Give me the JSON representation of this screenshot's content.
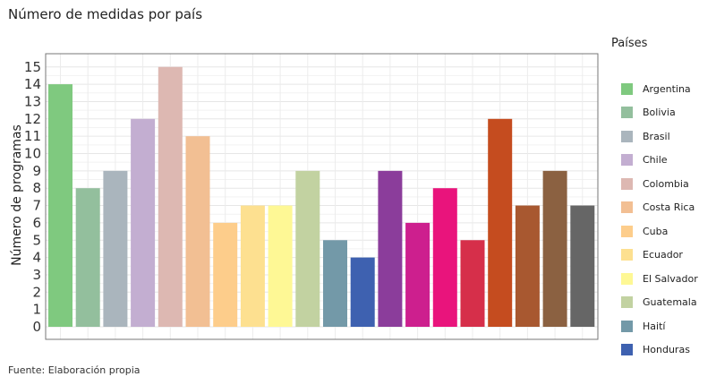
{
  "chart_data": {
    "type": "bar",
    "title": "Número de medidas por país",
    "xlabel": "",
    "ylabel": "Número de programas",
    "ylim": [
      0,
      15.5
    ],
    "yticks": [
      0,
      1,
      2,
      3,
      4,
      5,
      6,
      7,
      8,
      9,
      10,
      11,
      12,
      13,
      14,
      15
    ],
    "grid": true,
    "legend_title": "Países",
    "legend_position": "right",
    "categories": [
      "Argentina",
      "Bolivia",
      "Brasil",
      "Chile",
      "Colombia",
      "Costa Rica",
      "Cuba",
      "Ecuador",
      "El Salvador",
      "Guatemala",
      "Haití",
      "Honduras",
      "",
      "",
      "",
      "",
      "",
      "",
      "",
      ""
    ],
    "values": [
      14,
      8,
      9,
      12,
      15,
      11,
      6,
      7,
      7,
      9,
      5,
      4,
      9,
      6,
      8,
      5,
      12,
      7,
      9,
      7
    ],
    "colors": [
      "#7fc97f",
      "#93bf9d",
      "#aab5bd",
      "#c3aed1",
      "#ddb8b2",
      "#f2bf93",
      "#fdcd8b",
      "#fde090",
      "#fef895",
      "#c2d2a1",
      "#7399a8",
      "#3e61b0",
      "#8b3d9b",
      "#cd1f8e",
      "#e9147c",
      "#d62f4a",
      "#c54c1f",
      "#a85830",
      "#8b6141",
      "#666666"
    ]
  },
  "source_note": "Fuente: Elaboración propia"
}
